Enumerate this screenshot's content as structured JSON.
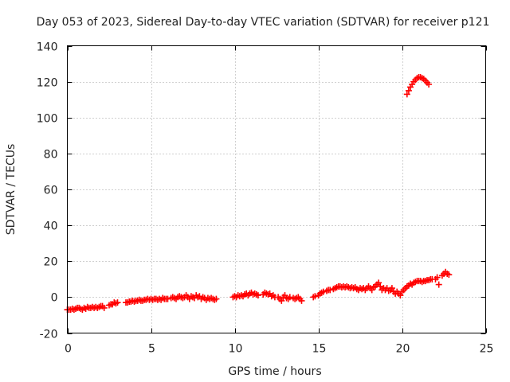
{
  "chart_data": {
    "type": "scatter",
    "title": "Day 053 of 2023, Sidereal Day-to-day VTEC variation (SDTVAR) for receiver p121",
    "xlabel": "GPS time / hours",
    "ylabel": "SDTVAR / TECUs",
    "xlim": [
      0,
      25
    ],
    "ylim": [
      -20,
      140
    ],
    "xticks": [
      "0",
      "5",
      "10",
      "15",
      "20",
      "25"
    ],
    "yticks": [
      "-20",
      "0",
      "20",
      "40",
      "60",
      "80",
      "100",
      "120",
      "140"
    ],
    "grid": true,
    "marker": "plus",
    "colors": {
      "series": "#ff0000",
      "grid": "#a0a0a0"
    },
    "series": [
      {
        "name": "SDTVAR",
        "points": [
          [
            0.0,
            -7
          ],
          [
            0.1,
            -7
          ],
          [
            0.2,
            -7
          ],
          [
            0.3,
            -6.5
          ],
          [
            0.4,
            -7
          ],
          [
            0.5,
            -6.5
          ],
          [
            0.6,
            -6
          ],
          [
            0.7,
            -6
          ],
          [
            0.8,
            -6.5
          ],
          [
            0.9,
            -7
          ],
          [
            1.0,
            -6
          ],
          [
            1.1,
            -6.5
          ],
          [
            1.2,
            -5.5
          ],
          [
            1.3,
            -6
          ],
          [
            1.4,
            -6
          ],
          [
            1.5,
            -5.5
          ],
          [
            1.6,
            -6
          ],
          [
            1.7,
            -5.5
          ],
          [
            1.8,
            -6
          ],
          [
            1.9,
            -5.5
          ],
          [
            2.0,
            -5
          ],
          [
            2.1,
            -5
          ],
          [
            2.2,
            -6
          ],
          [
            2.5,
            -4.5
          ],
          [
            2.6,
            -4
          ],
          [
            2.7,
            -4
          ],
          [
            2.8,
            -3
          ],
          [
            2.9,
            -3.5
          ],
          [
            3.0,
            -3
          ],
          [
            3.5,
            -3
          ],
          [
            3.6,
            -3
          ],
          [
            3.7,
            -2.5
          ],
          [
            3.8,
            -2.5
          ],
          [
            3.9,
            -2
          ],
          [
            4.0,
            -2.5
          ],
          [
            4.1,
            -2
          ],
          [
            4.2,
            -2
          ],
          [
            4.3,
            -1.5
          ],
          [
            4.4,
            -2
          ],
          [
            4.5,
            -2
          ],
          [
            4.6,
            -1.5
          ],
          [
            4.7,
            -1.5
          ],
          [
            4.8,
            -1
          ],
          [
            4.9,
            -1.5
          ],
          [
            5.0,
            -1
          ],
          [
            5.1,
            -1.5
          ],
          [
            5.2,
            -1
          ],
          [
            5.3,
            -1
          ],
          [
            5.4,
            -1.5
          ],
          [
            5.5,
            -1
          ],
          [
            5.6,
            -1.5
          ],
          [
            5.7,
            -0.5
          ],
          [
            5.8,
            -1
          ],
          [
            5.9,
            -1
          ],
          [
            6.0,
            -1
          ],
          [
            6.2,
            -0.5
          ],
          [
            6.3,
            0
          ],
          [
            6.4,
            -0.5
          ],
          [
            6.5,
            -1
          ],
          [
            6.6,
            0
          ],
          [
            6.7,
            0.5
          ],
          [
            6.8,
            0
          ],
          [
            6.9,
            -0.5
          ],
          [
            7.0,
            0
          ],
          [
            7.1,
            1
          ],
          [
            7.2,
            0
          ],
          [
            7.3,
            -1
          ],
          [
            7.4,
            0.5
          ],
          [
            7.5,
            0
          ],
          [
            7.6,
            -0.5
          ],
          [
            7.7,
            1
          ],
          [
            7.8,
            0
          ],
          [
            7.9,
            0.5
          ],
          [
            8.0,
            -1
          ],
          [
            8.1,
            0
          ],
          [
            8.2,
            -0.5
          ],
          [
            8.3,
            -1.5
          ],
          [
            8.4,
            -0.5
          ],
          [
            8.5,
            -1
          ],
          [
            8.6,
            -0.5
          ],
          [
            8.7,
            -1
          ],
          [
            8.8,
            -1.5
          ],
          [
            8.9,
            -1
          ],
          [
            9.9,
            0
          ],
          [
            10.0,
            0.5
          ],
          [
            10.1,
            0
          ],
          [
            10.2,
            1
          ],
          [
            10.3,
            0.5
          ],
          [
            10.4,
            1
          ],
          [
            10.5,
            0.5
          ],
          [
            10.6,
            1.5
          ],
          [
            10.7,
            2
          ],
          [
            10.8,
            1
          ],
          [
            10.9,
            2
          ],
          [
            11.0,
            2.5
          ],
          [
            11.1,
            1.5
          ],
          [
            11.2,
            2
          ],
          [
            11.3,
            1.5
          ],
          [
            11.4,
            1
          ],
          [
            11.7,
            1.5
          ],
          [
            11.8,
            2.5
          ],
          [
            11.9,
            2
          ],
          [
            12.0,
            1.5
          ],
          [
            12.1,
            2
          ],
          [
            12.2,
            0.5
          ],
          [
            12.3,
            1
          ],
          [
            12.4,
            0
          ],
          [
            12.6,
            0
          ],
          [
            12.7,
            -1
          ],
          [
            12.8,
            -2
          ],
          [
            12.9,
            0
          ],
          [
            13.0,
            1
          ],
          [
            13.1,
            -0.5
          ],
          [
            13.2,
            -1
          ],
          [
            13.3,
            0
          ],
          [
            13.5,
            -0.5
          ],
          [
            13.6,
            -1
          ],
          [
            13.7,
            -0.5
          ],
          [
            13.8,
            0
          ],
          [
            13.9,
            -1
          ],
          [
            14.0,
            -2
          ],
          [
            14.7,
            0
          ],
          [
            14.8,
            0.5
          ],
          [
            15.0,
            1
          ],
          [
            15.1,
            2
          ],
          [
            15.2,
            2.5
          ],
          [
            15.3,
            3
          ],
          [
            15.5,
            3.5
          ],
          [
            15.6,
            4
          ],
          [
            15.7,
            4
          ],
          [
            15.9,
            4.5
          ],
          [
            16.0,
            5
          ],
          [
            16.1,
            5.5
          ],
          [
            16.2,
            6
          ],
          [
            16.3,
            6
          ],
          [
            16.4,
            5.5
          ],
          [
            16.5,
            6
          ],
          [
            16.6,
            5.5
          ],
          [
            16.7,
            6
          ],
          [
            16.8,
            5.5
          ],
          [
            16.9,
            5
          ],
          [
            17.0,
            5.5
          ],
          [
            17.1,
            5
          ],
          [
            17.2,
            5.5
          ],
          [
            17.3,
            4.5
          ],
          [
            17.4,
            4
          ],
          [
            17.5,
            5
          ],
          [
            17.6,
            4.5
          ],
          [
            17.7,
            5
          ],
          [
            17.8,
            4
          ],
          [
            17.9,
            5
          ],
          [
            18.0,
            6
          ],
          [
            18.1,
            5
          ],
          [
            18.2,
            4
          ],
          [
            18.3,
            5.5
          ],
          [
            18.4,
            6
          ],
          [
            18.5,
            7
          ],
          [
            18.6,
            8
          ],
          [
            18.7,
            6
          ],
          [
            18.8,
            4
          ],
          [
            18.9,
            5
          ],
          [
            19.0,
            4
          ],
          [
            19.1,
            5
          ],
          [
            19.2,
            3.5
          ],
          [
            19.3,
            4
          ],
          [
            19.4,
            5
          ],
          [
            19.5,
            3
          ],
          [
            19.6,
            2
          ],
          [
            19.7,
            3
          ],
          [
            19.8,
            2
          ],
          [
            19.9,
            1
          ],
          [
            20.0,
            3
          ],
          [
            20.1,
            4
          ],
          [
            20.2,
            5
          ],
          [
            20.3,
            6
          ],
          [
            20.4,
            6.5
          ],
          [
            20.5,
            7.5
          ],
          [
            20.6,
            7
          ],
          [
            20.7,
            8
          ],
          [
            20.8,
            8.5
          ],
          [
            20.9,
            9
          ],
          [
            21.0,
            9
          ],
          [
            21.1,
            9
          ],
          [
            21.2,
            8.5
          ],
          [
            21.3,
            9
          ],
          [
            21.4,
            9
          ],
          [
            21.5,
            9.5
          ],
          [
            21.6,
            9.5
          ],
          [
            21.7,
            10
          ],
          [
            21.8,
            10
          ],
          [
            22.0,
            10
          ],
          [
            22.1,
            11
          ],
          [
            22.2,
            7
          ],
          [
            22.4,
            12
          ],
          [
            22.5,
            13
          ],
          [
            22.6,
            14
          ],
          [
            22.7,
            13
          ],
          [
            22.8,
            12.5
          ],
          [
            20.3,
            113
          ],
          [
            20.4,
            115
          ],
          [
            20.5,
            117
          ],
          [
            20.6,
            118.5
          ],
          [
            20.7,
            120
          ],
          [
            20.8,
            121
          ],
          [
            20.9,
            122
          ],
          [
            21.0,
            122.5
          ],
          [
            21.1,
            122.5
          ],
          [
            21.2,
            122
          ],
          [
            21.3,
            121.5
          ],
          [
            21.4,
            120.5
          ],
          [
            21.5,
            119.5
          ],
          [
            21.6,
            118.5
          ]
        ]
      }
    ]
  }
}
